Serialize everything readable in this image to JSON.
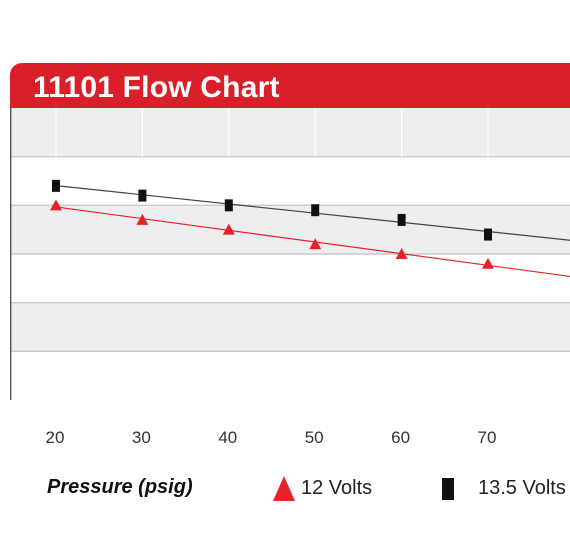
{
  "chart_data": {
    "type": "line",
    "title": "11101 Flow Chart",
    "xlabel": "Pressure (psig)",
    "ylabel": "",
    "x": [
      20,
      30,
      40,
      50,
      60,
      70
    ],
    "xticks": [
      "20",
      "30",
      "40",
      "50",
      "60",
      "70"
    ],
    "xlim": [
      15,
      80
    ],
    "ylim": [
      0,
      6
    ],
    "grid": true,
    "legend_position": "bottom",
    "series": [
      {
        "name": "12 Volts",
        "marker": "triangle",
        "color": "#e8222c",
        "line_color": "#e8222c",
        "values": [
          4.0,
          3.7,
          3.5,
          3.2,
          3.0,
          2.8
        ]
      },
      {
        "name": "13.5 Volts",
        "marker": "square",
        "color": "#111111",
        "line_color": "#444444",
        "values": [
          4.4,
          4.2,
          4.0,
          3.9,
          3.7,
          3.4
        ]
      }
    ]
  }
}
